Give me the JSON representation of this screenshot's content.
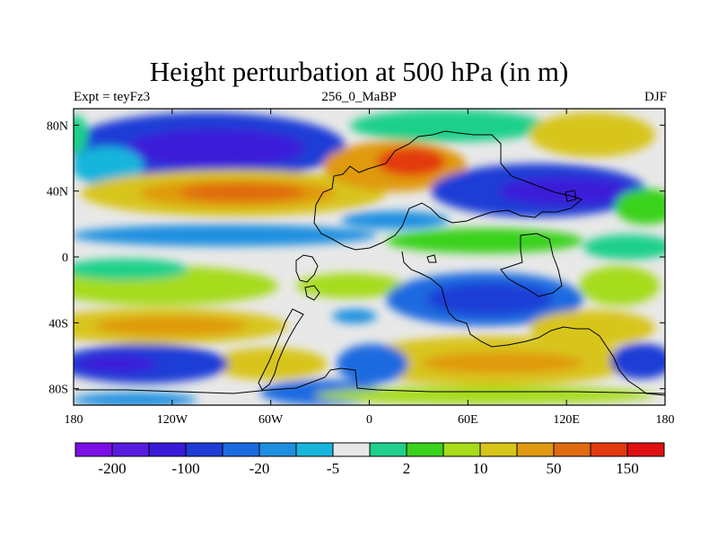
{
  "title": "Height perturbation at 500 hPa (in m)",
  "subtitle_left": "Expt = teyFz3",
  "subtitle_center": "256_0_MaBP",
  "subtitle_right": "DJF",
  "chart_data": {
    "type": "heatmap",
    "title": "Height perturbation at 500 hPa (in m)",
    "variable": "500 hPa geopotential height perturbation",
    "units": "m",
    "x_axis": {
      "range": [
        -180,
        180
      ],
      "tick_values": [
        -180,
        -120,
        -60,
        0,
        60,
        120,
        180
      ],
      "tick_labels": [
        "180",
        "120W",
        "60W",
        "0",
        "60E",
        "120E",
        "180"
      ]
    },
    "y_axis": {
      "range": [
        -90,
        90
      ],
      "tick_values": [
        80,
        40,
        0,
        -40,
        -80
      ],
      "tick_labels": [
        "80N",
        "40N",
        "0",
        "40S",
        "80S"
      ]
    },
    "colorbar": {
      "orientation": "horizontal",
      "colors": [
        "#7b0fe6",
        "#5a1be0",
        "#3a1ad9",
        "#1f3cd6",
        "#1a6be0",
        "#1e8fe0",
        "#17b5dc",
        "#e8e8e8",
        "#1fd08a",
        "#3ad21a",
        "#a6dc1a",
        "#d8c51a",
        "#e09a10",
        "#e06a10",
        "#e33a10",
        "#e01010"
      ],
      "tick_labels": [
        "-200",
        "-100",
        "-20",
        "-5",
        "2",
        "10",
        "50",
        "150"
      ]
    }
  }
}
